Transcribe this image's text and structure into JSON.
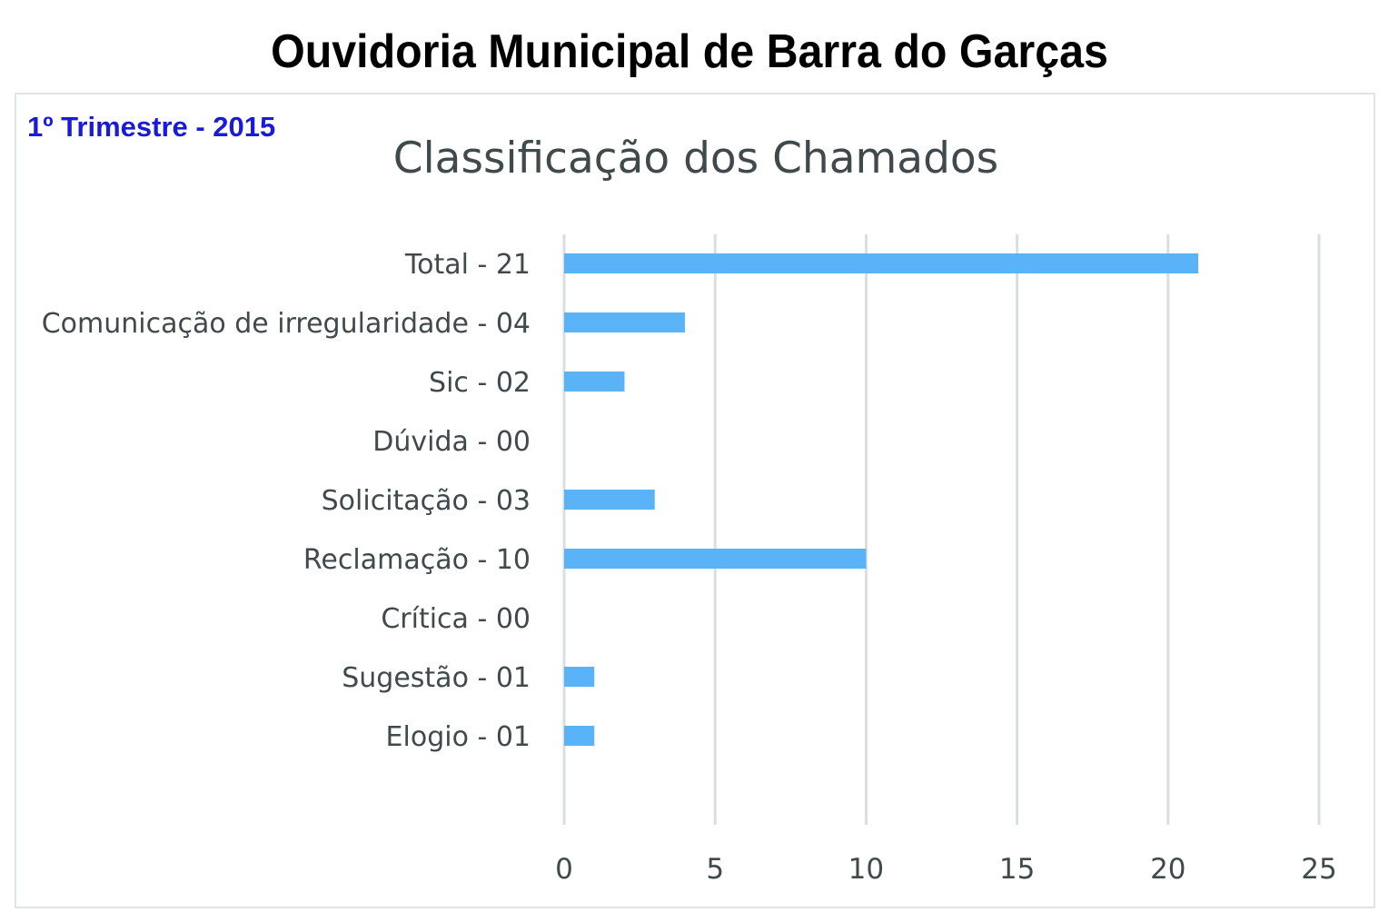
{
  "header": {
    "title": "Ouvidoria Municipal de Barra do Garças",
    "period": "1º Trimestre - 2015"
  },
  "colors": {
    "bar": "#5ab3f7",
    "grid": "#d9dedf",
    "text": "#404a4d",
    "period": "#1a1adb"
  },
  "chart_data": {
    "type": "bar",
    "orientation": "horizontal",
    "title": "Classificação dos Chamados",
    "categories": [
      "Total - 21",
      "Comunicação de irregularidade - 04",
      "Sic - 02",
      "Dúvida - 00",
      "Solicitação - 03",
      "Reclamação - 10",
      "Crítica - 00",
      "Sugestão - 01",
      "Elogio - 01"
    ],
    "values": [
      21,
      4,
      2,
      0,
      3,
      10,
      0,
      1,
      1
    ],
    "xlim": [
      0,
      25
    ],
    "xticks": [
      0,
      5,
      10,
      15,
      20,
      25
    ],
    "grid": true,
    "legend": "none"
  }
}
